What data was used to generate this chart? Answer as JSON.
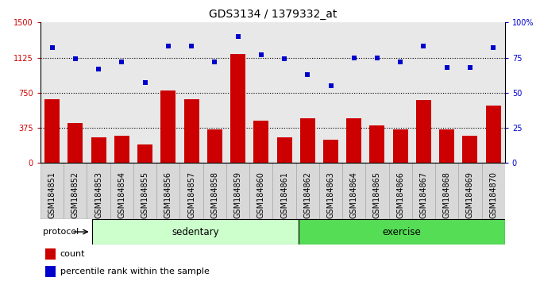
{
  "title": "GDS3134 / 1379332_at",
  "samples": [
    "GSM184851",
    "GSM184852",
    "GSM184853",
    "GSM184854",
    "GSM184855",
    "GSM184856",
    "GSM184857",
    "GSM184858",
    "GSM184859",
    "GSM184860",
    "GSM184861",
    "GSM184862",
    "GSM184863",
    "GSM184864",
    "GSM184865",
    "GSM184866",
    "GSM184867",
    "GSM184868",
    "GSM184869",
    "GSM184870"
  ],
  "counts": [
    680,
    430,
    270,
    290,
    200,
    770,
    680,
    360,
    1160,
    450,
    270,
    480,
    250,
    480,
    400,
    360,
    670,
    360,
    290,
    610
  ],
  "percentile": [
    82,
    74,
    67,
    72,
    57,
    83,
    83,
    72,
    90,
    77,
    74,
    63,
    55,
    75,
    75,
    72,
    83,
    68,
    68,
    82
  ],
  "sedentary_count": 10,
  "exercise_count": 10,
  "left_ylim": [
    0,
    1500
  ],
  "right_ylim": [
    0,
    100
  ],
  "left_yticks": [
    0,
    375,
    750,
    1125,
    1500
  ],
  "right_yticks": [
    0,
    25,
    50,
    75,
    100
  ],
  "right_yticklabels": [
    "0",
    "25",
    "50",
    "75",
    "100%"
  ],
  "bar_color": "#cc0000",
  "dot_color": "#0000cc",
  "grid_values": [
    375,
    750,
    1125
  ],
  "sedentary_color": "#ccffcc",
  "exercise_color": "#55dd55",
  "protocol_label": "protocol",
  "sedentary_label": "sedentary",
  "exercise_label": "exercise",
  "legend_count_label": "count",
  "legend_pct_label": "percentile rank within the sample",
  "title_fontsize": 10,
  "tick_label_fontsize": 7,
  "bg_color": "#e8e8e8"
}
